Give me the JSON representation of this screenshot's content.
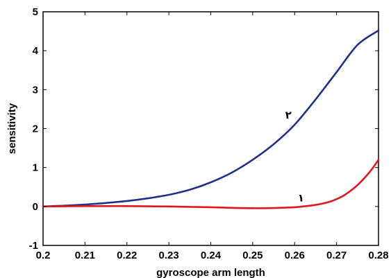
{
  "chart_data": {
    "type": "line",
    "title": "",
    "xlabel": "gyroscope arm length",
    "ylabel": "sensitivity",
    "xlim": [
      0.2,
      0.28
    ],
    "ylim": [
      -1,
      5
    ],
    "xticks": [
      0.2,
      0.21,
      0.22,
      0.23,
      0.24,
      0.25,
      0.26,
      0.27,
      0.28
    ],
    "yticks": [
      -1,
      0,
      1,
      2,
      3,
      4,
      5
    ],
    "xtick_labels": [
      "0.2",
      "0.21",
      "0.22",
      "0.23",
      "0.24",
      "0.25",
      "0.26",
      "0.27",
      "0.28"
    ],
    "ytick_labels": [
      "-1",
      "0",
      "1",
      "2",
      "3",
      "4",
      "5"
    ],
    "grid": false,
    "legend": "none",
    "series": [
      {
        "label": "۲",
        "color": "#1f2f8c",
        "label_at": [
          0.2585,
          2.35
        ],
        "x": [
          0.2,
          0.205,
          0.21,
          0.215,
          0.22,
          0.225,
          0.23,
          0.235,
          0.24,
          0.245,
          0.25,
          0.255,
          0.26,
          0.265,
          0.27,
          0.275,
          0.28
        ],
        "y": [
          0.0,
          0.02,
          0.05,
          0.09,
          0.14,
          0.21,
          0.3,
          0.43,
          0.62,
          0.87,
          1.2,
          1.6,
          2.1,
          2.75,
          3.45,
          4.15,
          4.52
        ]
      },
      {
        "label": "۱",
        "color": "#e4141b",
        "label_at": [
          0.2615,
          0.22
        ],
        "x": [
          0.2,
          0.205,
          0.21,
          0.215,
          0.22,
          0.225,
          0.23,
          0.235,
          0.24,
          0.245,
          0.25,
          0.255,
          0.26,
          0.262,
          0.265,
          0.268,
          0.27,
          0.272,
          0.275,
          0.278,
          0.28
        ],
        "y": [
          0.0,
          0.005,
          0.01,
          0.01,
          0.01,
          0.005,
          0.0,
          -0.01,
          -0.02,
          -0.035,
          -0.045,
          -0.04,
          -0.02,
          0.0,
          0.04,
          0.11,
          0.19,
          0.3,
          0.55,
          0.9,
          1.2
        ]
      }
    ]
  }
}
